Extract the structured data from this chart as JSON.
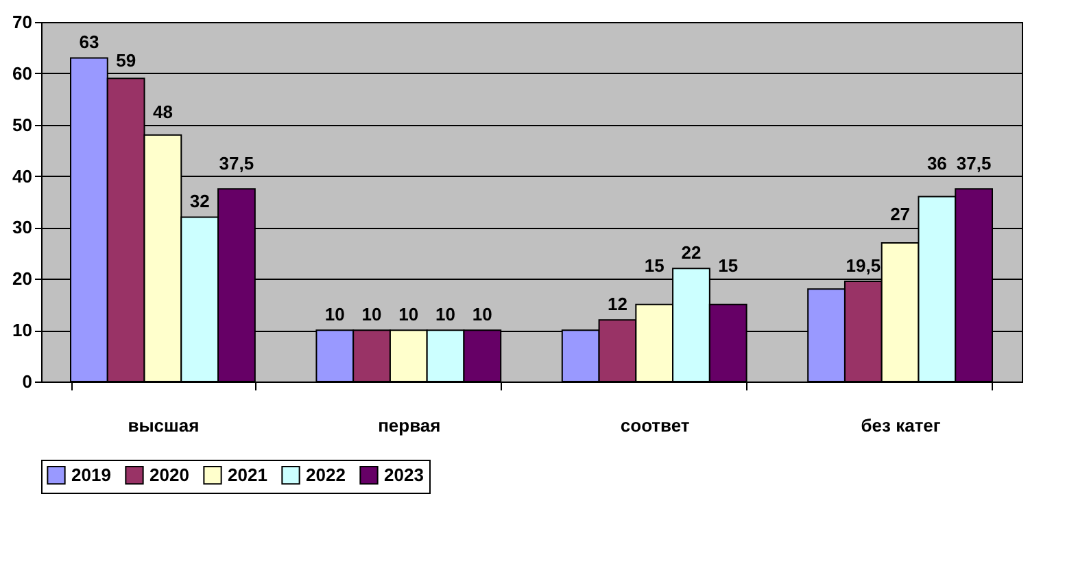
{
  "chart_data": {
    "type": "bar",
    "categories": [
      "высшая",
      "первая",
      "соответ",
      "без катег"
    ],
    "series": [
      {
        "name": "2019",
        "color": "#9999ff",
        "values": [
          63,
          10,
          10,
          18
        ],
        "value_labels": [
          "63",
          "10",
          null,
          null
        ]
      },
      {
        "name": "2020",
        "color": "#993366",
        "values": [
          59,
          10,
          12,
          19.5
        ],
        "value_labels": [
          "59",
          "10",
          "12",
          "19,5"
        ]
      },
      {
        "name": "2021",
        "color": "#ffffcc",
        "values": [
          48,
          10,
          15,
          27
        ],
        "value_labels": [
          "48",
          "10",
          "15",
          "27"
        ]
      },
      {
        "name": "2022",
        "color": "#ccffff",
        "values": [
          32,
          10,
          22,
          36
        ],
        "value_labels": [
          "32",
          "10",
          "22",
          "36"
        ]
      },
      {
        "name": "2023",
        "color": "#660066",
        "values": [
          37.5,
          10,
          15,
          37.5
        ],
        "value_labels": [
          "37,5",
          "10",
          "15",
          "37,5"
        ]
      }
    ],
    "ylim": [
      0,
      70
    ],
    "yticks": [
      0,
      10,
      20,
      30,
      40,
      50,
      60,
      70
    ],
    "grid": "y",
    "legend": "bottom"
  }
}
